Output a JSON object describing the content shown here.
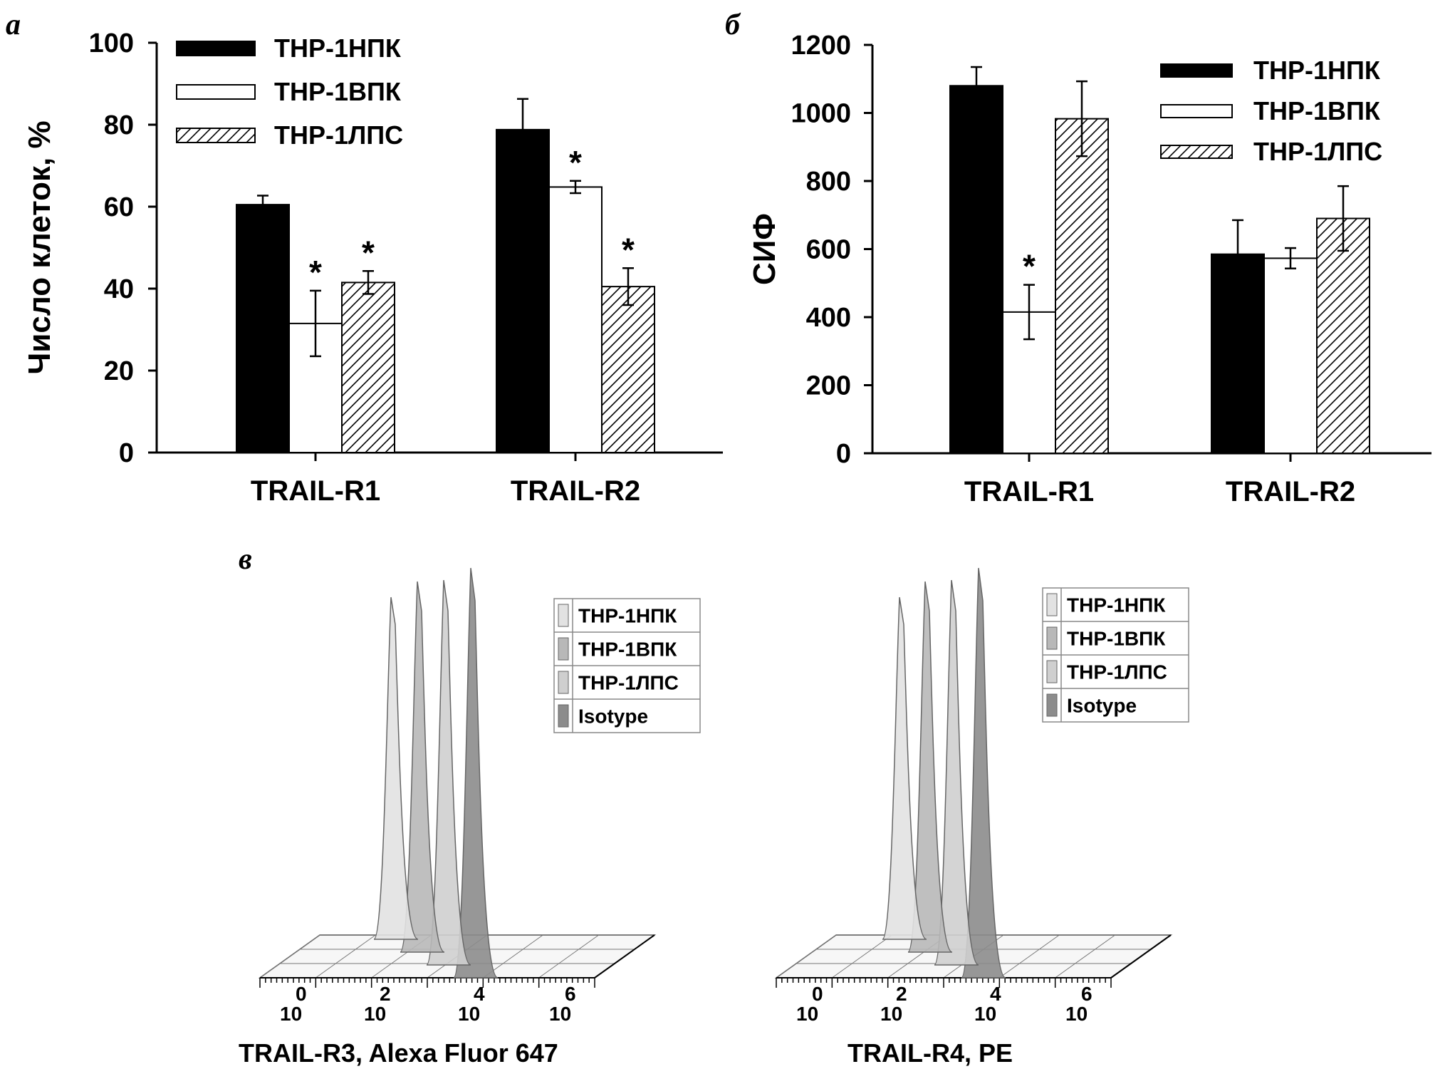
{
  "colors": {
    "fill_hpk": "#000000",
    "fill_vpk": "#ffffff",
    "hatch": "#000000"
  },
  "chart_data": [
    {
      "panel": "а",
      "type": "bar",
      "ylabel": "Число клеток, %",
      "ylim": [
        0,
        100
      ],
      "yticks": [
        0,
        20,
        40,
        60,
        80,
        100
      ],
      "categories": [
        "TRAIL-R1",
        "TRAIL-R2"
      ],
      "legend_position": "top-center",
      "series": [
        {
          "name": "THP-1НПК",
          "values": [
            60.5,
            78.8
          ],
          "errors": [
            2.2,
            7.5
          ],
          "pattern": "solid-black",
          "stars": [
            false,
            false
          ]
        },
        {
          "name": "THP-1ВПК",
          "values": [
            31.5,
            64.8
          ],
          "errors": [
            8.0,
            1.5
          ],
          "pattern": "white",
          "stars": [
            true,
            true
          ]
        },
        {
          "name": "THP-1ЛПС",
          "values": [
            41.5,
            40.5
          ],
          "errors": [
            2.8,
            4.5
          ],
          "pattern": "hatched",
          "stars": [
            true,
            true
          ]
        }
      ]
    },
    {
      "panel": "б",
      "type": "bar",
      "ylabel": "СИФ",
      "ylim": [
        0,
        1200
      ],
      "yticks": [
        0,
        200,
        400,
        600,
        800,
        1000,
        1200
      ],
      "categories": [
        "TRAIL-R1",
        "TRAIL-R2"
      ],
      "legend_position": "top-right",
      "series": [
        {
          "name": "THP-1НПК",
          "values": [
            1080,
            585
          ],
          "errors": [
            55,
            100
          ],
          "pattern": "solid-black",
          "stars": [
            false,
            false
          ]
        },
        {
          "name": "THP-1ВПК",
          "values": [
            415,
            573
          ],
          "errors": [
            80,
            30
          ],
          "pattern": "white",
          "stars": [
            true,
            false
          ]
        },
        {
          "name": "THP-1ЛПС",
          "values": [
            983,
            690
          ],
          "errors": [
            110,
            95
          ],
          "pattern": "hatched",
          "stars": [
            false,
            false
          ]
        }
      ]
    },
    {
      "panel": "в",
      "type": "histogram-3d",
      "plots": [
        {
          "xlabel": "TRAIL-R3, Alexa Fluor 647",
          "xtick_exponents": [
            "0",
            "2",
            "4",
            "6"
          ],
          "legend": [
            "THP-1НПК",
            "THP-1ВПК",
            "THP-1ЛПС",
            "Isotype"
          ],
          "legend_colors": [
            "#e2e2e2",
            "#b8b8b8",
            "#cfcfcf",
            "#8c8c8c"
          ]
        },
        {
          "xlabel": "TRAIL-R4, PE",
          "xtick_exponents": [
            "0",
            "2",
            "4",
            "6"
          ],
          "legend": [
            "THP-1НПК",
            "THP-1ВПК",
            "THP-1ЛПС",
            "Isotype"
          ],
          "legend_colors": [
            "#e2e2e2",
            "#b8b8b8",
            "#cfcfcf",
            "#8c8c8c"
          ]
        }
      ]
    }
  ],
  "star_symbol": "*",
  "tick_base": "10"
}
